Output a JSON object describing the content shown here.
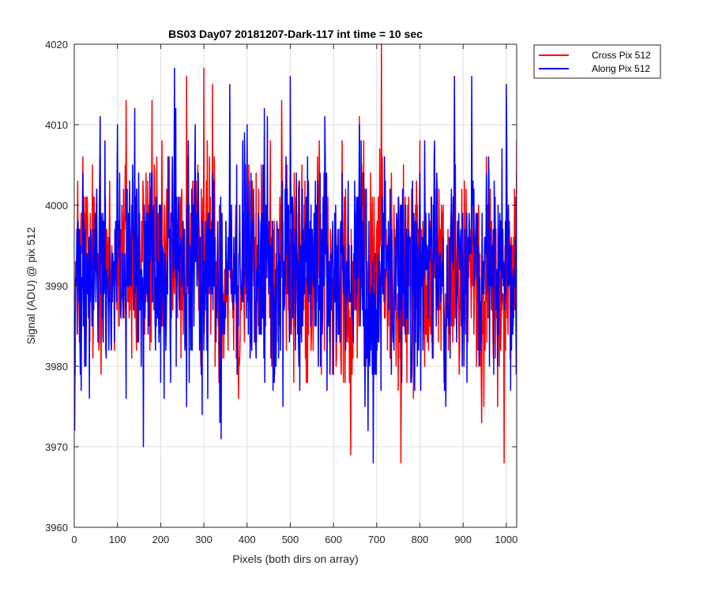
{
  "chart_data": {
    "type": "line",
    "title": "BS03 Day07 20181207-Dark-117 int time = 10 sec",
    "xlabel": "Pixels (both dirs on array)",
    "ylabel": "Signal (ADU) @ pix 512",
    "xlim": [
      0,
      1024
    ],
    "ylim": [
      3960,
      4020
    ],
    "x_ticks": [
      0,
      100,
      200,
      300,
      400,
      500,
      600,
      700,
      800,
      900,
      1000
    ],
    "y_ticks": [
      3960,
      3970,
      3980,
      3990,
      4000,
      4010,
      4020
    ],
    "grid": true,
    "legend_position": "outside-top-right",
    "noise_model": {
      "x_start": 1,
      "x_end": 1024,
      "step": 1,
      "note": "Traces are dense per-pixel dark-frame noise around ~3992 ADU; values below are a representative downsampled readout"
    },
    "series": [
      {
        "name": "Cross Pix 512",
        "color": "#ff0000",
        "x": [
          1,
          20,
          40,
          60,
          80,
          100,
          120,
          140,
          160,
          180,
          200,
          220,
          240,
          260,
          280,
          300,
          320,
          340,
          360,
          380,
          400,
          420,
          440,
          460,
          480,
          500,
          520,
          540,
          560,
          580,
          600,
          620,
          640,
          660,
          680,
          700,
          711,
          720,
          740,
          756,
          780,
          800,
          820,
          840,
          860,
          880,
          900,
          920,
          940,
          960,
          980,
          995,
          1010,
          1024
        ],
        "values": [
          3985,
          4006,
          3992,
          4006,
          3988,
          3998,
          4013,
          3986,
          4001,
          4013,
          3990,
          4006,
          3996,
          4016,
          3993,
          4017,
          4015,
          3986,
          4004,
          3976,
          4008,
          3985,
          4009,
          3992,
          4013,
          3984,
          4003,
          3978,
          3997,
          4004,
          3986,
          4008,
          3969,
          4011,
          3985,
          3997,
          4020,
          3986,
          4000,
          3968,
          3995,
          4008,
          3982,
          3998,
          3976,
          4006,
          3991,
          4005,
          3980,
          3999,
          3975,
          3968,
          3981,
          4008
        ]
      },
      {
        "name": "Along Pix 512",
        "color": "#0000ff",
        "x": [
          1,
          20,
          40,
          60,
          80,
          100,
          120,
          140,
          160,
          180,
          200,
          220,
          232,
          260,
          280,
          300,
          320,
          340,
          360,
          380,
          400,
          420,
          440,
          460,
          480,
          500,
          520,
          540,
          560,
          580,
          600,
          620,
          640,
          660,
          680,
          692,
          720,
          740,
          760,
          780,
          800,
          820,
          840,
          860,
          880,
          900,
          920,
          940,
          960,
          980,
          1000,
          1010,
          1024
        ],
        "values": [
          3972,
          4004,
          3989,
          4011,
          3982,
          4010,
          3976,
          4012,
          3970,
          4004,
          3978,
          3997,
          4017,
          3975,
          4010,
          3982,
          4004,
          3971,
          4015,
          3985,
          4010,
          3983,
          4012,
          3977,
          3998,
          4016,
          3980,
          4006,
          3985,
          4011,
          3979,
          4004,
          3988,
          4010,
          3972,
          3968,
          4003,
          3982,
          4002,
          3978,
          4004,
          3990,
          4002,
          3975,
          4016,
          3988,
          4016,
          3982,
          4003,
          3980,
          4015,
          3977,
          4004
        ]
      }
    ]
  }
}
